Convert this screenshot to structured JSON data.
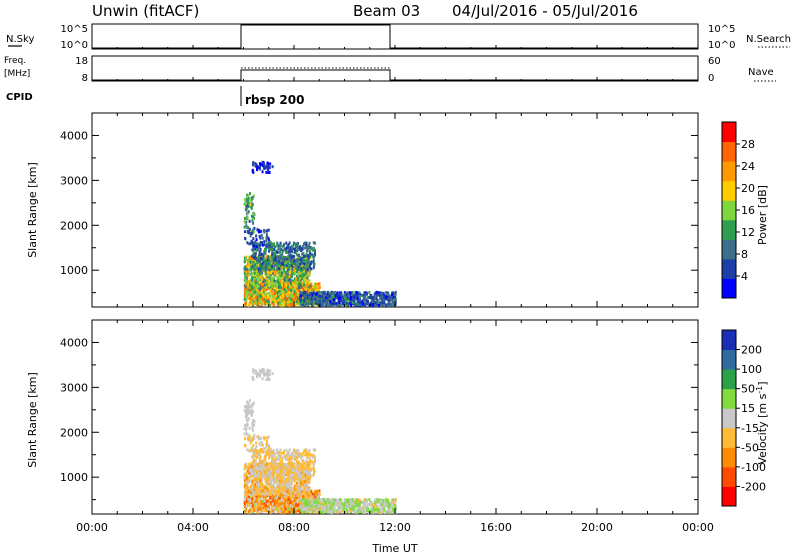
{
  "header": {
    "site": "Unwin (fitACF)",
    "beam": "Beam 03",
    "date_range": "04/Jul/2016 - 05/Jul/2016"
  },
  "top_panels": {
    "nsky_label": "N.Sky",
    "nsky_ticks": [
      "10^5",
      "10^0"
    ],
    "nsearch_label": "N.Search",
    "freq_label_1": "Freq.",
    "freq_label_2": "[MHz]",
    "freq_ticks": [
      "18",
      "8"
    ],
    "nave_ticks": [
      "60",
      "0"
    ],
    "nave_label": "Nave",
    "cpid_label": "CPID",
    "cpid_value": "rbsp 200"
  },
  "colors": {
    "power": [
      "#0000ff",
      "#1f3fa8",
      "#3d6e8a",
      "#2e9f4e",
      "#7fd63f",
      "#ffcc00",
      "#ff9a00",
      "#ff6600",
      "#ff0000"
    ],
    "velocity": [
      "#ff0000",
      "#ff4a00",
      "#ff8c00",
      "#ffbb33",
      "#c8c8c8",
      "#7fdc3c",
      "#2ba24a",
      "#2f6b9e",
      "#1a2fb5"
    ]
  },
  "chart_data": [
    {
      "type": "heatmap",
      "title": "Power",
      "xlabel": "",
      "ylabel": "Slant Range [km]",
      "xlim": [
        0,
        24
      ],
      "ylim": [
        180,
        4500
      ],
      "yticks": [
        "1000",
        "2000",
        "3000",
        "4000"
      ],
      "colorbar_label": "Power [dB]",
      "colorbar_ticks": [
        "4",
        "8",
        "12",
        "16",
        "20",
        "24",
        "28"
      ],
      "colorbar_range": [
        0,
        32
      ]
    },
    {
      "type": "heatmap",
      "title": "Velocity",
      "xlabel": "Time UT",
      "ylabel": "Slant Range [km]",
      "xlim": [
        0,
        24
      ],
      "ylim": [
        180,
        4500
      ],
      "xticks": [
        "00:00",
        "04:00",
        "08:00",
        "12:00",
        "16:00",
        "20:00",
        "00:00"
      ],
      "yticks": [
        "1000",
        "2000",
        "3000",
        "4000"
      ],
      "colorbar_label": "Velocity [m s^-1]",
      "colorbar_ticks": [
        "-200",
        "-100",
        "-50",
        "-15",
        "15",
        "50",
        "100",
        "200"
      ]
    }
  ],
  "scatter_clusters": [
    {
      "t0": 6.0,
      "t1": 9.0,
      "r0": 200,
      "r1": 700,
      "n": 900,
      "pw": [
        10,
        28
      ],
      "vel": [
        -120,
        20
      ]
    },
    {
      "t0": 6.0,
      "t1": 8.6,
      "r0": 600,
      "r1": 1300,
      "n": 900,
      "pw": [
        8,
        24
      ],
      "vel": [
        -60,
        15
      ]
    },
    {
      "t0": 6.3,
      "t1": 8.8,
      "r0": 1000,
      "r1": 1600,
      "n": 380,
      "pw": [
        4,
        14
      ],
      "vel": [
        -50,
        15
      ]
    },
    {
      "t0": 8.2,
      "t1": 12.0,
      "r0": 200,
      "r1": 500,
      "n": 650,
      "pw": [
        2,
        12
      ],
      "vel": [
        -20,
        40
      ]
    },
    {
      "t0": 6.0,
      "t1": 6.4,
      "r0": 1800,
      "r1": 2700,
      "n": 70,
      "pw": [
        6,
        18
      ],
      "vel": [
        -15,
        15
      ]
    },
    {
      "t0": 6.3,
      "t1": 7.2,
      "r0": 3150,
      "r1": 3400,
      "n": 45,
      "pw": [
        0,
        6
      ],
      "vel": [
        -15,
        15
      ]
    },
    {
      "t0": 6.0,
      "t1": 7.0,
      "r0": 1500,
      "r1": 1900,
      "n": 60,
      "pw": [
        2,
        10
      ],
      "vel": [
        -50,
        15
      ]
    }
  ]
}
